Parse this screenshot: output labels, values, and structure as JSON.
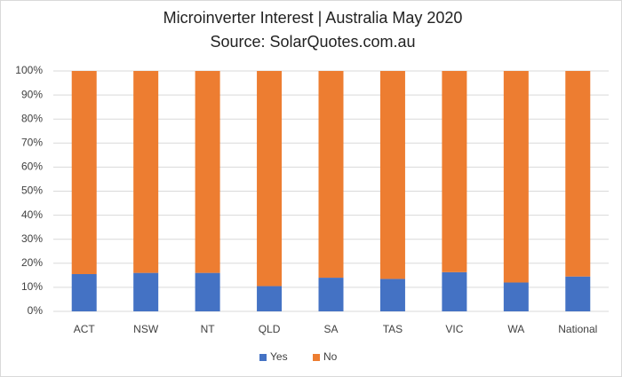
{
  "chart_data": {
    "type": "stacked_bar",
    "title": "Microinverter Interest | Australia May 2020",
    "subtitle": "Source: SolarQuotes.com.au",
    "categories": [
      "ACT",
      "NSW",
      "NT",
      "QLD",
      "SA",
      "TAS",
      "VIC",
      "WA",
      "National"
    ],
    "series": [
      {
        "name": "Yes",
        "color": "#4472c4",
        "values": [
          15.5,
          16,
          16,
          10.5,
          14,
          13.5,
          16.3,
          12,
          14.5
        ]
      },
      {
        "name": "No",
        "color": "#ed7d31",
        "values": [
          84.5,
          84,
          84,
          89.5,
          86,
          86.5,
          83.7,
          88,
          85.5
        ]
      }
    ],
    "ylim": [
      0,
      100
    ],
    "yticks": [
      {
        "value": 0,
        "label": "0%"
      },
      {
        "value": 10,
        "label": "10%"
      },
      {
        "value": 20,
        "label": "20%"
      },
      {
        "value": 30,
        "label": "30%"
      },
      {
        "value": 40,
        "label": "40%"
      },
      {
        "value": 50,
        "label": "50%"
      },
      {
        "value": 60,
        "label": "60%"
      },
      {
        "value": 70,
        "label": "70%"
      },
      {
        "value": 80,
        "label": "80%"
      },
      {
        "value": 90,
        "label": "90%"
      },
      {
        "value": 100,
        "label": "100%"
      }
    ],
    "grid": true,
    "legend": "bottom"
  }
}
